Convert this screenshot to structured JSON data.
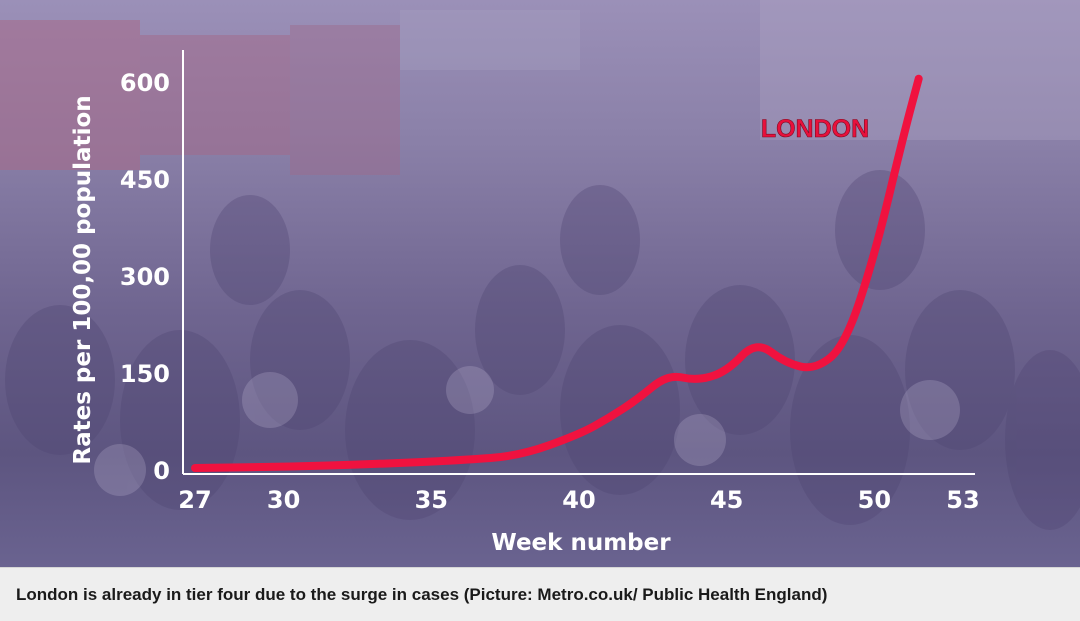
{
  "caption": "London is already in tier four due to the surge in cases (Picture: Metro.co.uk/ Public Health England)",
  "colors": {
    "line": "#f0123f",
    "axis": "#ffffff",
    "background_tint": "#8a80a8"
  },
  "chart_data": {
    "type": "line",
    "title": "",
    "xlabel": "Week number",
    "ylabel": "Rates per 100,00 population",
    "xlim": [
      27,
      53
    ],
    "ylim": [
      0,
      600
    ],
    "xticks": [
      27,
      30,
      35,
      40,
      45,
      50,
      53
    ],
    "yticks": [
      0,
      150,
      300,
      450,
      600
    ],
    "grid": false,
    "series": [
      {
        "name": "LONDON",
        "x": [
          27,
          30,
          33,
          36,
          38,
          40,
          41,
          42,
          43,
          44,
          45,
          46,
          47,
          48,
          49,
          50,
          51,
          51.5
        ],
        "y": [
          3,
          5,
          9,
          15,
          22,
          55,
          80,
          110,
          148,
          138,
          152,
          200,
          165,
          155,
          192,
          330,
          520,
          605
        ]
      }
    ]
  }
}
